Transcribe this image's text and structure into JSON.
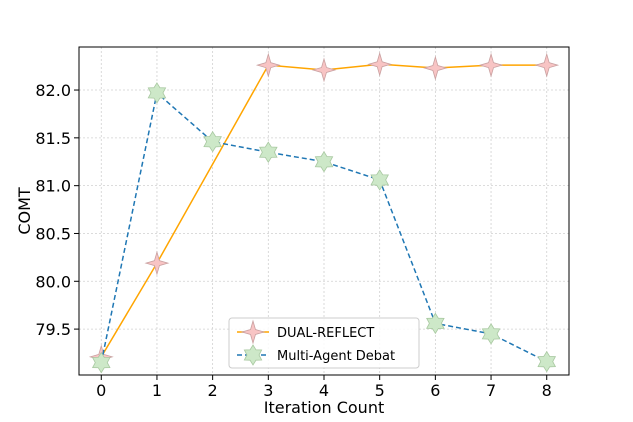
{
  "chart_data": {
    "type": "line",
    "xlabel": "Iteration Count",
    "ylabel": "COMT",
    "xlim": [
      -0.4,
      8.4
    ],
    "ylim": [
      79.02,
      82.45
    ],
    "xticks": [
      0,
      1,
      2,
      3,
      4,
      5,
      6,
      7,
      8
    ],
    "yticks": [
      79.5,
      80.0,
      80.5,
      81.0,
      81.5,
      82.0
    ],
    "ytick_labels": [
      "79.5",
      "80.0",
      "80.5",
      "81.0",
      "81.5",
      "82.0"
    ],
    "xtick_labels": [
      "0",
      "1",
      "2",
      "3",
      "4",
      "5",
      "6",
      "7",
      "8"
    ],
    "grid": true,
    "legend_position": "lower-center",
    "series": [
      {
        "name": "DUAL-REFLECT",
        "x": [
          0,
          1,
          3,
          4,
          5,
          6,
          7,
          8
        ],
        "values": [
          79.21,
          80.19,
          82.26,
          82.21,
          82.27,
          82.23,
          82.26,
          82.26
        ],
        "line_color": "#ffa500",
        "line_style": "solid",
        "marker_fill": "#f8c4c4",
        "marker_edge": "#c9a0a0"
      },
      {
        "name": "Multi-Agent Debat",
        "x": [
          0,
          1,
          2,
          3,
          4,
          5,
          6,
          7,
          8
        ],
        "values": [
          79.15,
          81.97,
          81.46,
          81.35,
          81.25,
          81.06,
          79.56,
          79.45,
          79.16
        ],
        "line_color": "#1f77b4",
        "line_style": "dashed",
        "marker_fill": "#cde8c8",
        "marker_edge": "#a8c8a0"
      }
    ]
  }
}
